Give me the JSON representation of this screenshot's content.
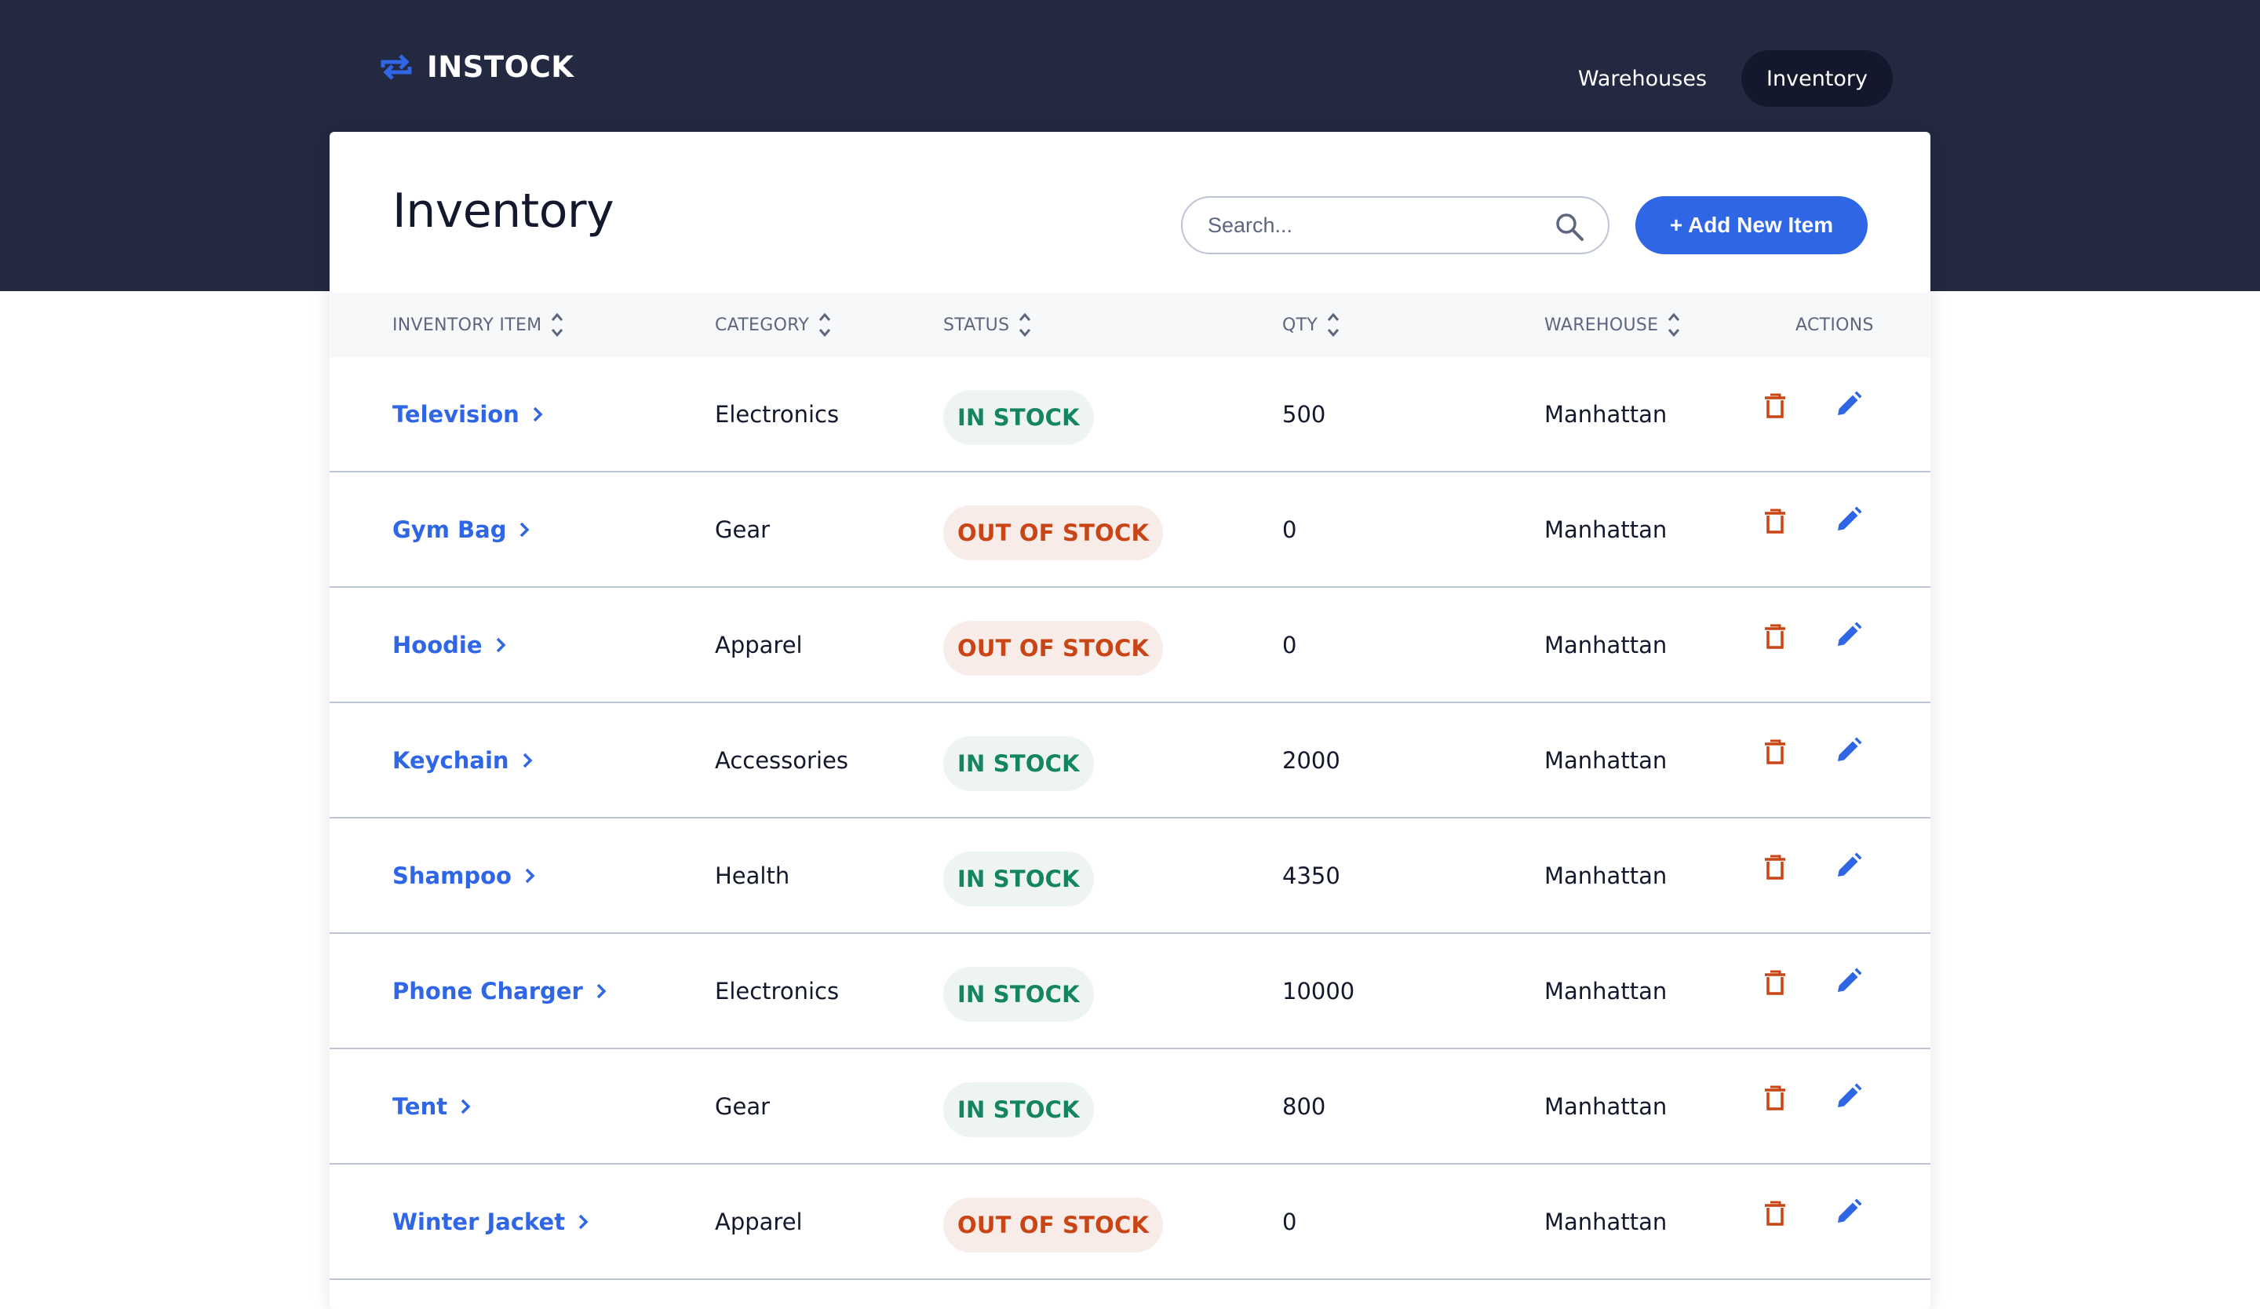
{
  "brand": {
    "name": "INSTOCK",
    "logo_icon": "swap-arrows-icon",
    "accent_color": "#2e66e6"
  },
  "nav": {
    "items": [
      {
        "label": "Warehouses",
        "active": false
      },
      {
        "label": "Inventory",
        "active": true
      }
    ]
  },
  "page": {
    "title": "Inventory"
  },
  "search": {
    "placeholder": "Search...",
    "value": ""
  },
  "toolbar": {
    "add_label": "+ Add New Item"
  },
  "table": {
    "columns": [
      {
        "label": "INVENTORY ITEM",
        "sortable": true
      },
      {
        "label": "CATEGORY",
        "sortable": true
      },
      {
        "label": "STATUS",
        "sortable": true
      },
      {
        "label": "QTY",
        "sortable": true
      },
      {
        "label": "WAREHOUSE",
        "sortable": true
      },
      {
        "label": "ACTIONS",
        "sortable": false
      }
    ],
    "rows": [
      {
        "item": "Television",
        "category": "Electronics",
        "status": "IN STOCK",
        "in_stock": true,
        "qty": "500",
        "warehouse": "Manhattan"
      },
      {
        "item": "Gym Bag",
        "category": "Gear",
        "status": "OUT OF STOCK",
        "in_stock": false,
        "qty": "0",
        "warehouse": "Manhattan"
      },
      {
        "item": "Hoodie",
        "category": "Apparel",
        "status": "OUT OF STOCK",
        "in_stock": false,
        "qty": "0",
        "warehouse": "Manhattan"
      },
      {
        "item": "Keychain",
        "category": "Accessories",
        "status": "IN STOCK",
        "in_stock": true,
        "qty": "2000",
        "warehouse": "Manhattan"
      },
      {
        "item": "Shampoo",
        "category": "Health",
        "status": "IN STOCK",
        "in_stock": true,
        "qty": "4350",
        "warehouse": "Manhattan"
      },
      {
        "item": "Phone Charger",
        "category": "Electronics",
        "status": "IN STOCK",
        "in_stock": true,
        "qty": "10000",
        "warehouse": "Manhattan"
      },
      {
        "item": "Tent",
        "category": "Gear",
        "status": "IN STOCK",
        "in_stock": true,
        "qty": "800",
        "warehouse": "Manhattan"
      },
      {
        "item": "Winter Jacket",
        "category": "Apparel",
        "status": "OUT OF STOCK",
        "in_stock": false,
        "qty": "0",
        "warehouse": "Manhattan"
      }
    ]
  },
  "icons": {
    "search": "search-icon",
    "sort": "sort-icon",
    "chevron": "chevron-right-icon",
    "delete": "trash-icon",
    "edit": "pencil-icon"
  },
  "colors": {
    "header_bg": "#232940",
    "nav_active_bg": "#13182c",
    "in_stock_text": "#158463",
    "in_stock_bg": "#eef5f1",
    "out_of_stock_text": "#c94515",
    "out_of_stock_bg": "#f8ece9",
    "delete_icon": "#c94515",
    "edit_icon": "#2e66e6"
  }
}
